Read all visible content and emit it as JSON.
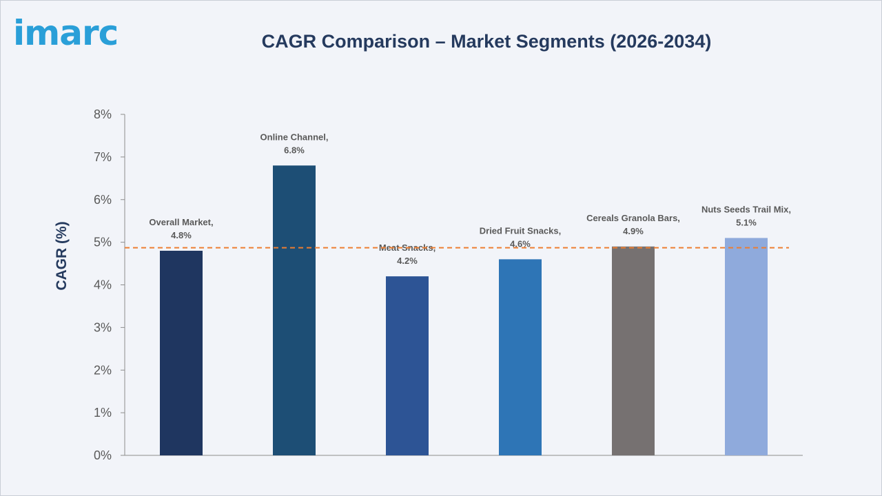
{
  "brand": {
    "logo_text": "imarc",
    "logo_color": "#2a9fd8"
  },
  "chart_data": {
    "type": "bar",
    "title": "CAGR Comparison – Market Segments (2026-2034)",
    "xlabel": "",
    "ylabel": "CAGR (%)",
    "ylim": [
      0,
      8
    ],
    "yticks": [
      0,
      1,
      2,
      3,
      4,
      5,
      6,
      7,
      8
    ],
    "ytick_labels": [
      "0%",
      "1%",
      "2%",
      "3%",
      "4%",
      "5%",
      "6%",
      "7%",
      "8%"
    ],
    "categories": [
      "Overall Market",
      "Online Channel",
      "Meat Snacks",
      "Dried Fruit Snacks",
      "Cereals Granola Bars",
      "Nuts Seeds Trail Mix"
    ],
    "values": [
      4.8,
      6.8,
      4.2,
      4.6,
      4.9,
      5.1
    ],
    "data_labels": [
      [
        "Overall Market,",
        "4.8%"
      ],
      [
        "Online Channel,",
        "6.8%"
      ],
      [
        "Meat Snacks,",
        "4.2%"
      ],
      [
        "Dried Fruit Snacks,",
        "4.6%"
      ],
      [
        "Cereals Granola Bars,",
        "4.9%"
      ],
      [
        "Nuts Seeds Trail Mix,",
        "5.1%"
      ]
    ],
    "colors": [
      "#1f3660",
      "#1d4e75",
      "#2d5495",
      "#2e75b6",
      "#767171",
      "#8faadc"
    ],
    "reference_line": {
      "value": 4.87,
      "color": "#ed7d31",
      "style": "dashed"
    },
    "grid": false,
    "legend": "none"
  }
}
